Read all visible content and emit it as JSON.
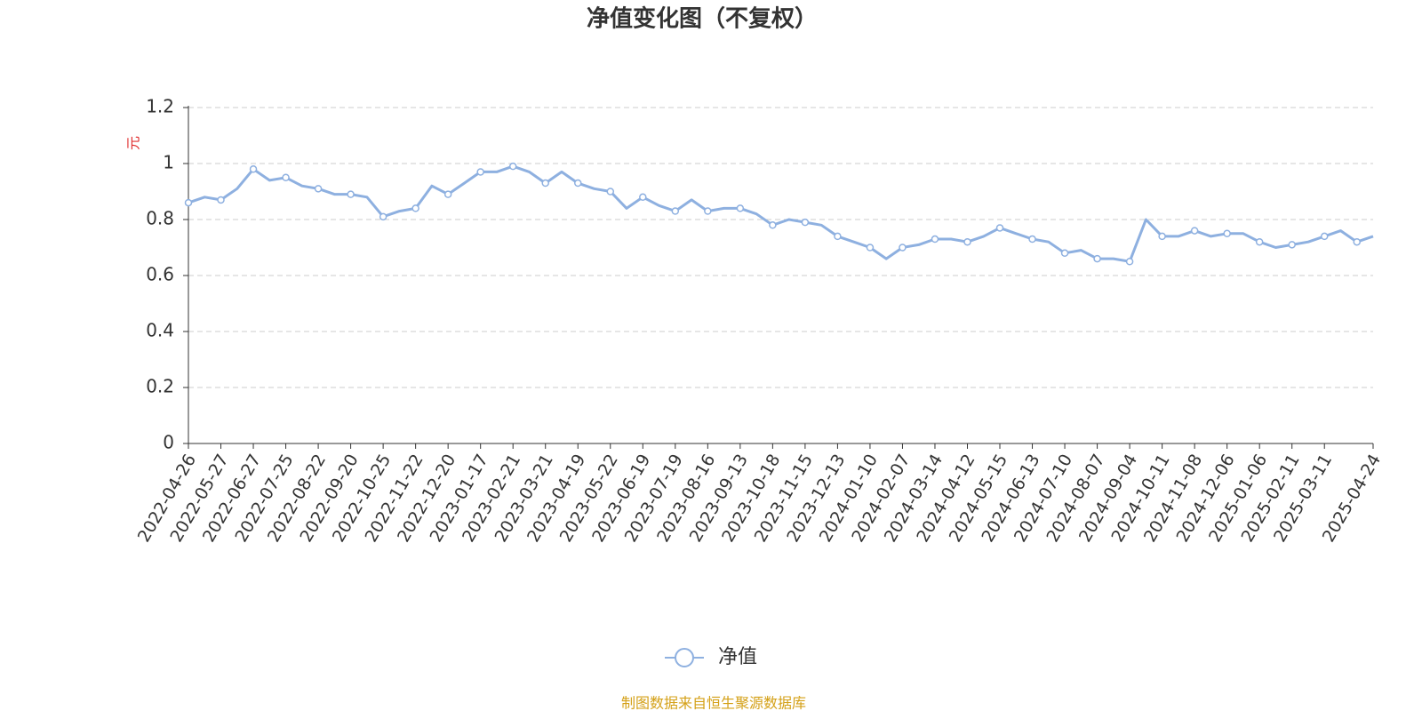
{
  "chart_data": {
    "type": "line",
    "title": "净值变化图（不复权）",
    "y_label": "元",
    "source": "制图数据来自恒生聚源数据库",
    "categories": [
      "2022-04-26",
      null,
      "2022-05-27",
      null,
      "2022-06-27",
      null,
      "2022-07-25",
      null,
      "2022-08-22",
      null,
      "2022-09-20",
      null,
      "2022-10-25",
      null,
      "2022-11-22",
      null,
      "2022-12-20",
      null,
      "2023-01-17",
      null,
      "2023-02-21",
      null,
      "2023-03-21",
      null,
      "2023-04-19",
      null,
      "2023-05-22",
      null,
      "2023-06-19",
      null,
      "2023-07-19",
      null,
      "2023-08-16",
      null,
      "2023-09-13",
      null,
      "2023-10-18",
      null,
      "2023-11-15",
      null,
      "2023-12-13",
      null,
      "2024-01-10",
      null,
      "2024-02-07",
      null,
      "2024-03-14",
      null,
      "2024-04-12",
      null,
      "2024-05-15",
      null,
      "2024-06-13",
      null,
      "2024-07-10",
      null,
      "2024-08-07",
      null,
      "2024-09-04",
      null,
      "2024-10-11",
      null,
      "2024-11-08",
      null,
      "2024-12-06",
      null,
      "2025-01-06",
      null,
      "2025-02-11",
      null,
      "2025-03-11",
      null,
      null,
      "2025-04-24"
    ],
    "series": [
      {
        "name": "净值",
        "color": "#8eb0e0",
        "values": [
          0.86,
          0.88,
          0.87,
          0.91,
          0.98,
          0.94,
          0.95,
          0.92,
          0.91,
          0.89,
          0.89,
          0.88,
          0.81,
          0.83,
          0.84,
          0.92,
          0.89,
          0.93,
          0.97,
          0.97,
          0.99,
          0.97,
          0.93,
          0.97,
          0.93,
          0.91,
          0.9,
          0.84,
          0.88,
          0.85,
          0.83,
          0.87,
          0.83,
          0.84,
          0.84,
          0.82,
          0.78,
          0.8,
          0.79,
          0.78,
          0.74,
          0.72,
          0.7,
          0.66,
          0.7,
          0.71,
          0.73,
          0.73,
          0.72,
          0.74,
          0.77,
          0.75,
          0.73,
          0.72,
          0.68,
          0.69,
          0.66,
          0.66,
          0.65,
          0.8,
          0.74,
          0.74,
          0.76,
          0.74,
          0.75,
          0.75,
          0.72,
          0.7,
          0.71,
          0.72,
          0.74,
          0.76,
          0.72,
          0.74
        ]
      }
    ],
    "ylim": [
      0,
      1.2
    ],
    "yticks": [
      0,
      0.2,
      0.4,
      0.6,
      0.8,
      1,
      1.2
    ],
    "grid": true,
    "legend": "bottom"
  }
}
